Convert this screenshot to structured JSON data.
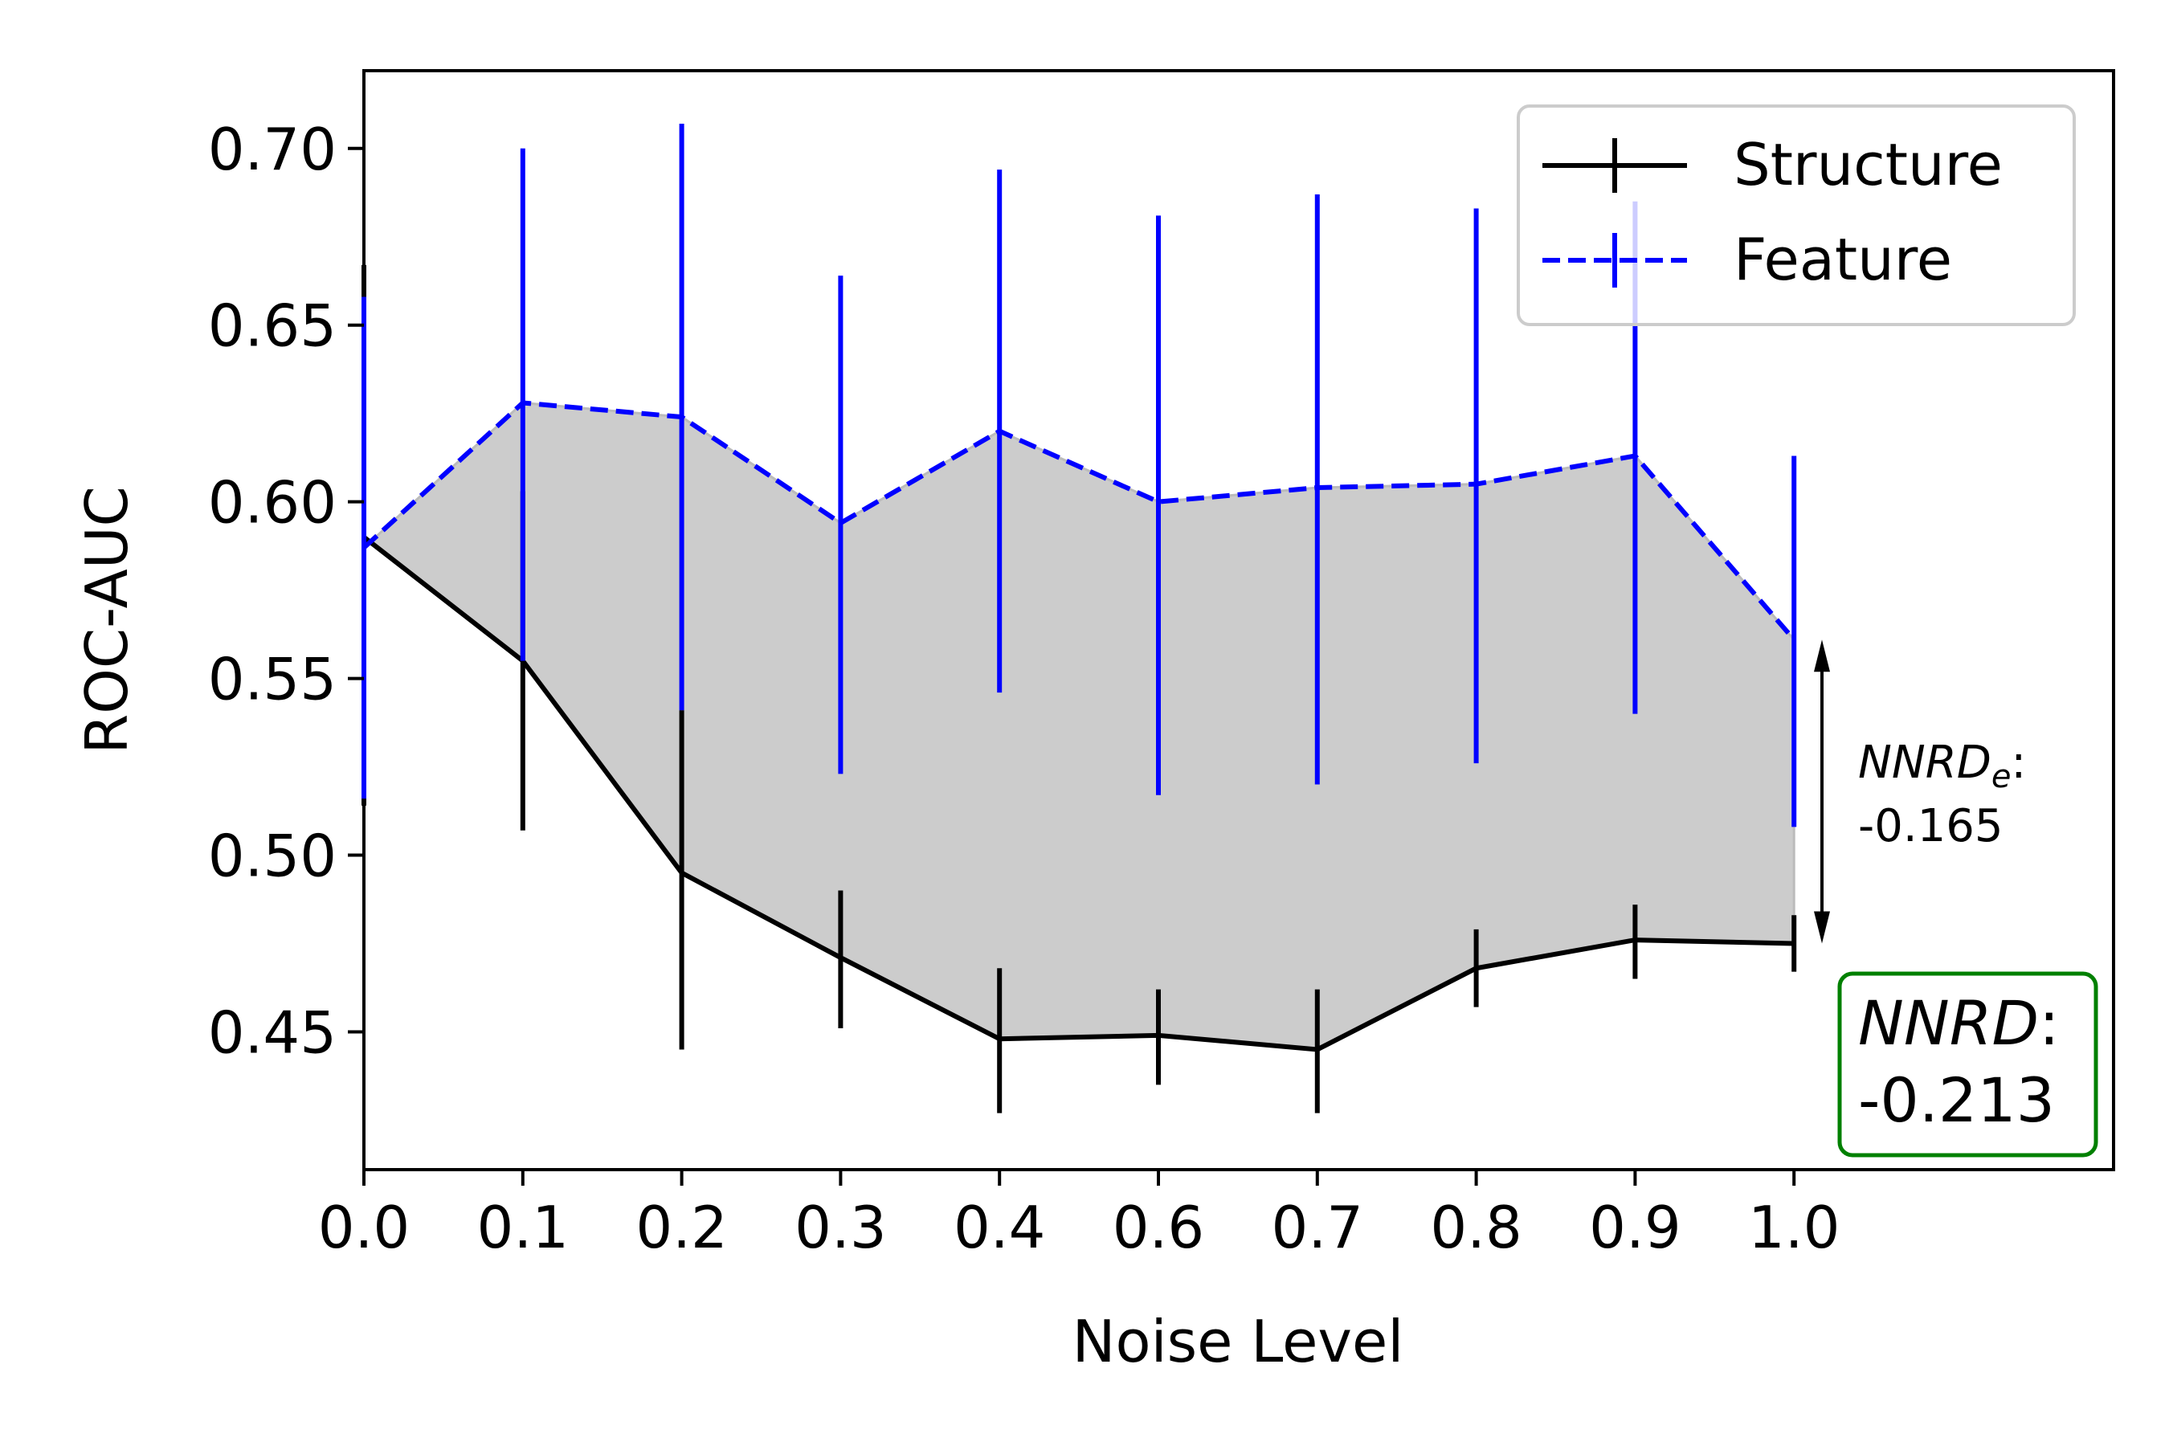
{
  "chart_data": {
    "type": "line",
    "xlabel": "Noise Level",
    "ylabel": "ROC-AUC",
    "x_tick_labels": [
      "0.0",
      "0.1",
      "0.2",
      "0.3",
      "0.4",
      "0.6",
      "0.7",
      "0.8",
      "0.9",
      "1.0"
    ],
    "y_ticks": [
      0.45,
      0.5,
      0.55,
      0.6,
      0.65,
      0.7
    ],
    "y_tick_labels": [
      "0.45",
      "0.50",
      "0.55",
      "0.60",
      "0.65",
      "0.70"
    ],
    "ylim": [
      0.411,
      0.722
    ],
    "grid": false,
    "legend_position": "top-right",
    "fill_between": {
      "color": "#cccccc"
    },
    "series": [
      {
        "name": "Structure",
        "color": "#000000",
        "linestyle": "solid",
        "values": [
          0.59,
          0.555,
          0.495,
          0.471,
          0.448,
          0.449,
          0.445,
          0.468,
          0.476,
          0.475
        ],
        "err_low": [
          0.514,
          0.507,
          0.445,
          0.451,
          0.427,
          0.435,
          0.427,
          0.457,
          0.465,
          0.467
        ],
        "err_high": [
          0.667,
          0.603,
          0.541,
          0.49,
          0.468,
          0.462,
          0.462,
          0.479,
          0.486,
          0.483
        ]
      },
      {
        "name": "Feature",
        "color": "#0000ff",
        "linestyle": "dashed",
        "values": [
          0.587,
          0.628,
          0.624,
          0.594,
          0.62,
          0.6,
          0.604,
          0.605,
          0.613,
          0.561
        ],
        "err_low": [
          0.516,
          0.555,
          0.541,
          0.523,
          0.546,
          0.517,
          0.52,
          0.526,
          0.54,
          0.508
        ],
        "err_high": [
          0.658,
          0.7,
          0.707,
          0.664,
          0.694,
          0.681,
          0.687,
          0.683,
          0.685,
          0.613
        ]
      }
    ],
    "annotations": {
      "nnrd_e": {
        "label": "NNRD",
        "subscript": "e",
        "colon": ":",
        "value": "-0.165",
        "arrow_top": 0.561,
        "arrow_bottom": 0.475
      },
      "nnrd": {
        "label": "NNRD",
        "colon": ":",
        "value": "-0.213",
        "box_color": "#008000"
      }
    }
  }
}
